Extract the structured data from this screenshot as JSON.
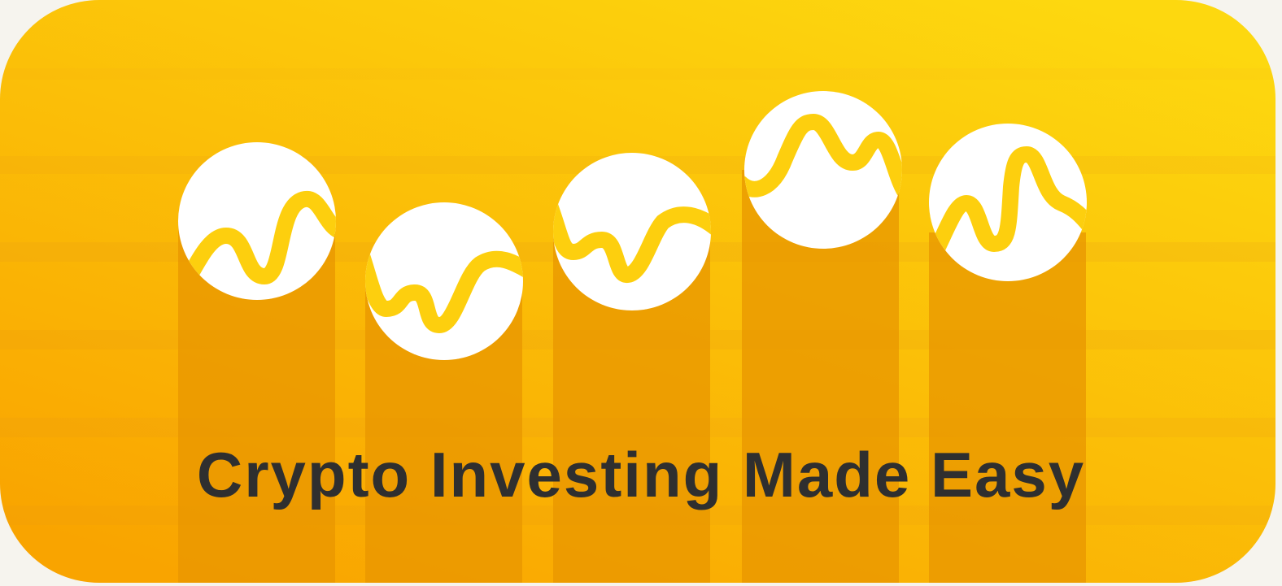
{
  "headline": "Crypto Investing Made Easy",
  "colors": {
    "background_top": "#fdd80f",
    "background_bottom": "#f9a400",
    "pillar": "#e89600",
    "coin": "#ffffff",
    "wave": "#fdcf0e",
    "text": "#2f2f2f"
  },
  "icons": [
    "coin-chart-icon",
    "coin-chart-icon",
    "coin-chart-icon",
    "coin-chart-icon",
    "coin-chart-icon"
  ]
}
